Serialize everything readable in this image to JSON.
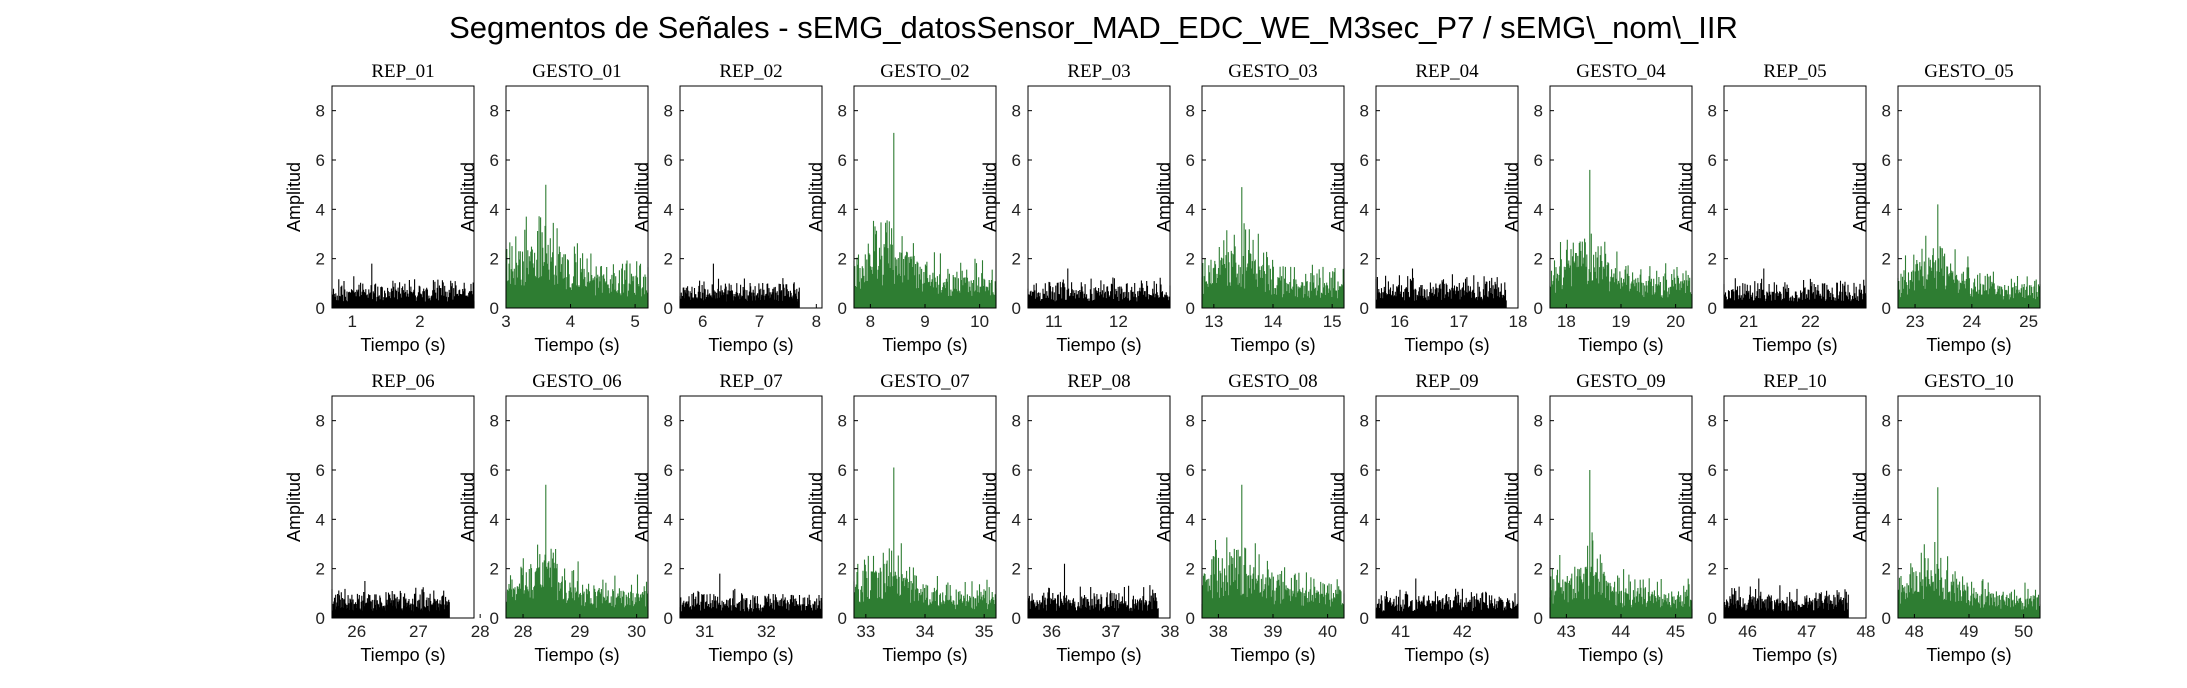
{
  "figure": {
    "title": "Segmentos de Señales - sEMG_datosSensor_MAD_EDC_WE_M3sec_P7 / sEMG\\_nom\\_IIR"
  },
  "colors": {
    "rep": "#000000",
    "gesto": "#2e7d32",
    "axes": "#000000"
  },
  "chart_data": [
    {
      "type": "area",
      "title": "REP_01",
      "xlabel": "Tiempo (s)",
      "ylabel": "Amplitud",
      "xlim": [
        0.7,
        2.8
      ],
      "ylim": [
        0,
        9
      ],
      "xticks": [
        1,
        2
      ],
      "yticks": [
        0,
        2,
        4,
        6,
        8
      ],
      "color": "#000000",
      "x_range": [
        0.7,
        2.8
      ],
      "level": 0.75,
      "noise": 0.55,
      "peak": 1.8,
      "seed": 1
    },
    {
      "type": "area",
      "title": "GESTO_01",
      "xlabel": "Tiempo (s)",
      "ylabel": "Amplitud",
      "xlim": [
        3.0,
        5.2
      ],
      "ylim": [
        0,
        9
      ],
      "xticks": [
        3,
        4,
        5
      ],
      "yticks": [
        0,
        2,
        4,
        6,
        8
      ],
      "color": "#2e7d32",
      "x_range": [
        3.0,
        5.2
      ],
      "level": 2.4,
      "noise": 1.5,
      "peak": 5.0,
      "seed": 2
    },
    {
      "type": "area",
      "title": "REP_02",
      "xlabel": "Tiempo (s)",
      "ylabel": "Amplitud",
      "xlim": [
        5.6,
        8.1
      ],
      "ylim": [
        0,
        9
      ],
      "xticks": [
        6,
        7,
        8
      ],
      "yticks": [
        0,
        2,
        4,
        6,
        8
      ],
      "color": "#000000",
      "x_range": [
        5.6,
        7.7
      ],
      "level": 0.75,
      "noise": 0.55,
      "peak": 1.8,
      "seed": 3
    },
    {
      "type": "area",
      "title": "GESTO_02",
      "xlabel": "Tiempo (s)",
      "ylabel": "Amplitud",
      "xlim": [
        7.7,
        10.3
      ],
      "ylim": [
        0,
        9
      ],
      "xticks": [
        8,
        9,
        10
      ],
      "yticks": [
        0,
        2,
        4,
        6,
        8
      ],
      "color": "#2e7d32",
      "x_range": [
        7.7,
        10.3
      ],
      "level": 2.3,
      "noise": 1.6,
      "peak": 7.1,
      "seed": 4
    },
    {
      "type": "area",
      "title": "REP_03",
      "xlabel": "Tiempo (s)",
      "ylabel": "Amplitud",
      "xlim": [
        10.6,
        12.8
      ],
      "ylim": [
        0,
        9
      ],
      "xticks": [
        11,
        12
      ],
      "yticks": [
        0,
        2,
        4,
        6,
        8
      ],
      "color": "#000000",
      "x_range": [
        10.6,
        12.8
      ],
      "level": 0.75,
      "noise": 0.55,
      "peak": 1.6,
      "seed": 5
    },
    {
      "type": "area",
      "title": "GESTO_03",
      "xlabel": "Tiempo (s)",
      "ylabel": "Amplitud",
      "xlim": [
        12.8,
        15.2
      ],
      "ylim": [
        0,
        9
      ],
      "xticks": [
        13,
        14,
        15
      ],
      "yticks": [
        0,
        2,
        4,
        6,
        8
      ],
      "color": "#2e7d32",
      "x_range": [
        12.8,
        15.2
      ],
      "level": 2.0,
      "noise": 1.4,
      "peak": 4.9,
      "seed": 6
    },
    {
      "type": "area",
      "title": "REP_04",
      "xlabel": "Tiempo (s)",
      "ylabel": "Amplitud",
      "xlim": [
        15.6,
        18.0
      ],
      "ylim": [
        0,
        9
      ],
      "xticks": [
        16,
        17,
        18
      ],
      "yticks": [
        0,
        2,
        4,
        6,
        8
      ],
      "color": "#000000",
      "x_range": [
        15.6,
        17.8
      ],
      "level": 0.85,
      "noise": 0.55,
      "peak": 1.6,
      "seed": 7
    },
    {
      "type": "area",
      "title": "GESTO_04",
      "xlabel": "Tiempo (s)",
      "ylabel": "Amplitud",
      "xlim": [
        17.7,
        20.3
      ],
      "ylim": [
        0,
        9
      ],
      "xticks": [
        18,
        19,
        20
      ],
      "yticks": [
        0,
        2,
        4,
        6,
        8
      ],
      "color": "#2e7d32",
      "x_range": [
        17.7,
        20.3
      ],
      "level": 2.1,
      "noise": 1.4,
      "peak": 5.6,
      "seed": 8
    },
    {
      "type": "area",
      "title": "REP_05",
      "xlabel": "Tiempo (s)",
      "ylabel": "Amplitud",
      "xlim": [
        20.6,
        22.9
      ],
      "ylim": [
        0,
        9
      ],
      "xticks": [
        21,
        22
      ],
      "yticks": [
        0,
        2,
        4,
        6,
        8
      ],
      "color": "#000000",
      "x_range": [
        20.6,
        22.9
      ],
      "level": 0.75,
      "noise": 0.55,
      "peak": 1.6,
      "seed": 9
    },
    {
      "type": "area",
      "title": "GESTO_05",
      "xlabel": "Tiempo (s)",
      "ylabel": "Amplitud",
      "xlim": [
        22.7,
        25.2
      ],
      "ylim": [
        0,
        9
      ],
      "xticks": [
        23,
        24,
        25
      ],
      "yticks": [
        0,
        2,
        4,
        6,
        8
      ],
      "color": "#2e7d32",
      "x_range": [
        22.7,
        25.2
      ],
      "level": 1.7,
      "noise": 1.2,
      "peak": 4.2,
      "seed": 10
    },
    {
      "type": "area",
      "title": "REP_06",
      "xlabel": "Tiempo (s)",
      "ylabel": "Amplitud",
      "xlim": [
        25.6,
        27.9
      ],
      "ylim": [
        0,
        9
      ],
      "xticks": [
        26,
        27,
        28
      ],
      "yticks": [
        0,
        2,
        4,
        6,
        8
      ],
      "color": "#000000",
      "x_range": [
        25.6,
        27.5
      ],
      "level": 0.75,
      "noise": 0.55,
      "peak": 1.5,
      "seed": 11
    },
    {
      "type": "area",
      "title": "GESTO_06",
      "xlabel": "Tiempo (s)",
      "ylabel": "Amplitud",
      "xlim": [
        27.7,
        30.2
      ],
      "ylim": [
        0,
        9
      ],
      "xticks": [
        28,
        29,
        30
      ],
      "yticks": [
        0,
        2,
        4,
        6,
        8
      ],
      "color": "#2e7d32",
      "x_range": [
        27.7,
        30.2
      ],
      "level": 2.0,
      "noise": 1.4,
      "peak": 5.4,
      "seed": 12
    },
    {
      "type": "area",
      "title": "REP_07",
      "xlabel": "Tiempo (s)",
      "ylabel": "Amplitud",
      "xlim": [
        30.6,
        32.9
      ],
      "ylim": [
        0,
        9
      ],
      "xticks": [
        31,
        32
      ],
      "yticks": [
        0,
        2,
        4,
        6,
        8
      ],
      "color": "#000000",
      "x_range": [
        30.6,
        32.9
      ],
      "level": 0.75,
      "noise": 0.55,
      "peak": 1.8,
      "seed": 13
    },
    {
      "type": "area",
      "title": "GESTO_07",
      "xlabel": "Tiempo (s)",
      "ylabel": "Amplitud",
      "xlim": [
        32.8,
        35.2
      ],
      "ylim": [
        0,
        9
      ],
      "xticks": [
        33,
        34,
        35
      ],
      "yticks": [
        0,
        2,
        4,
        6,
        8
      ],
      "color": "#2e7d32",
      "x_range": [
        32.8,
        35.2
      ],
      "level": 1.8,
      "noise": 1.3,
      "peak": 6.1,
      "seed": 14
    },
    {
      "type": "area",
      "title": "REP_08",
      "xlabel": "Tiempo (s)",
      "ylabel": "Amplitud",
      "xlim": [
        35.6,
        38.0
      ],
      "ylim": [
        0,
        9
      ],
      "xticks": [
        36,
        37,
        38
      ],
      "yticks": [
        0,
        2,
        4,
        6,
        8
      ],
      "color": "#000000",
      "x_range": [
        35.6,
        37.8
      ],
      "level": 0.8,
      "noise": 0.6,
      "peak": 2.2,
      "seed": 15
    },
    {
      "type": "area",
      "title": "GESTO_08",
      "xlabel": "Tiempo (s)",
      "ylabel": "Amplitud",
      "xlim": [
        37.7,
        40.3
      ],
      "ylim": [
        0,
        9
      ],
      "xticks": [
        38,
        39,
        40
      ],
      "yticks": [
        0,
        2,
        4,
        6,
        8
      ],
      "color": "#2e7d32",
      "x_range": [
        37.7,
        40.3
      ],
      "level": 2.2,
      "noise": 1.4,
      "peak": 5.4,
      "seed": 16
    },
    {
      "type": "area",
      "title": "REP_09",
      "xlabel": "Tiempo (s)",
      "ylabel": "Amplitud",
      "xlim": [
        40.6,
        42.9
      ],
      "ylim": [
        0,
        9
      ],
      "xticks": [
        41,
        42
      ],
      "yticks": [
        0,
        2,
        4,
        6,
        8
      ],
      "color": "#000000",
      "x_range": [
        40.6,
        42.9
      ],
      "level": 0.75,
      "noise": 0.55,
      "peak": 1.6,
      "seed": 17
    },
    {
      "type": "area",
      "title": "GESTO_09",
      "xlabel": "Tiempo (s)",
      "ylabel": "Amplitud",
      "xlim": [
        42.7,
        45.3
      ],
      "ylim": [
        0,
        9
      ],
      "xticks": [
        43,
        44,
        45
      ],
      "yticks": [
        0,
        2,
        4,
        6,
        8
      ],
      "color": "#2e7d32",
      "x_range": [
        42.7,
        45.3
      ],
      "level": 1.8,
      "noise": 1.3,
      "peak": 6.0,
      "seed": 18
    },
    {
      "type": "area",
      "title": "REP_10",
      "xlabel": "Tiempo (s)",
      "ylabel": "Amplitud",
      "xlim": [
        45.6,
        48.0
      ],
      "ylim": [
        0,
        9
      ],
      "xticks": [
        46,
        47,
        48
      ],
      "yticks": [
        0,
        2,
        4,
        6,
        8
      ],
      "color": "#000000",
      "x_range": [
        45.6,
        47.7
      ],
      "level": 0.8,
      "noise": 0.55,
      "peak": 1.6,
      "seed": 19
    },
    {
      "type": "area",
      "title": "GESTO_10",
      "xlabel": "Tiempo (s)",
      "ylabel": "Amplitud",
      "xlim": [
        47.7,
        50.3
      ],
      "ylim": [
        0,
        9
      ],
      "xticks": [
        48,
        49,
        50
      ],
      "yticks": [
        0,
        2,
        4,
        6,
        8
      ],
      "color": "#2e7d32",
      "x_range": [
        47.7,
        50.3
      ],
      "level": 1.7,
      "noise": 1.2,
      "peak": 5.3,
      "seed": 20
    }
  ]
}
